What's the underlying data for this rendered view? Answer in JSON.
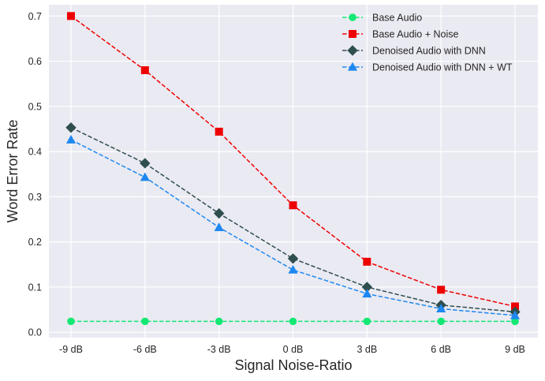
{
  "chart_data": {
    "type": "line",
    "title": "",
    "xlabel": "Signal Noise-Ratio",
    "ylabel": "Word Error Rate",
    "categories": [
      "-9 dB",
      "-6 dB",
      "-3 dB",
      "0 dB",
      "3 dB",
      "6 dB",
      "9 dB"
    ],
    "ylim": [
      -0.012,
      0.725
    ],
    "yticks": [
      0.0,
      0.1,
      0.2,
      0.3,
      0.4,
      0.5,
      0.6,
      0.7
    ],
    "grid": true,
    "legend_position": "top-right",
    "series": [
      {
        "name": "Base Audio",
        "color": "#14e874",
        "marker": "circle",
        "linestyle": "dashed",
        "values": [
          0.024,
          0.024,
          0.024,
          0.024,
          0.024,
          0.024,
          0.024
        ]
      },
      {
        "name": "Base Audio + Noise",
        "color": "#ee0000",
        "marker": "square",
        "linestyle": "dashed",
        "values": [
          0.7,
          0.58,
          0.444,
          0.281,
          0.156,
          0.094,
          0.057
        ]
      },
      {
        "name": "Denoised Audio with DNN",
        "color": "#2f4f4f",
        "marker": "diamond",
        "linestyle": "dashed",
        "values": [
          0.453,
          0.374,
          0.263,
          0.163,
          0.1,
          0.06,
          0.045
        ]
      },
      {
        "name": "Denoised Audio with DNN + WT",
        "color": "#1e88f0",
        "marker": "triangle",
        "linestyle": "dashed",
        "values": [
          0.426,
          0.343,
          0.232,
          0.138,
          0.085,
          0.052,
          0.037
        ]
      }
    ]
  }
}
